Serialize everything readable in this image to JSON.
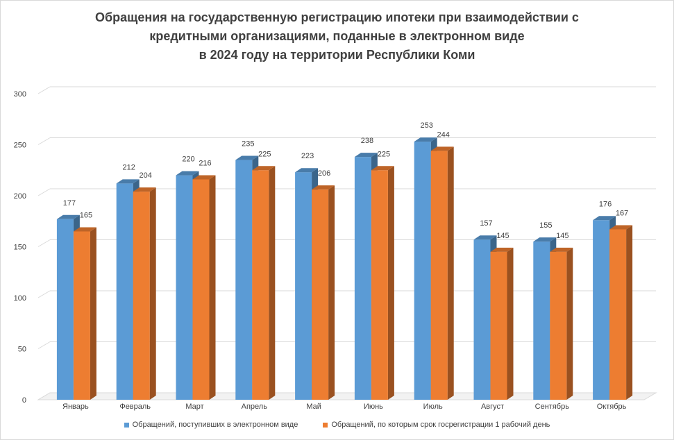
{
  "chart_data": {
    "type": "bar",
    "title_lines": [
      "Обращения на государственную  регистрацию ипотеки при взаимодействии  с",
      "кредитными организациями,  поданные  в электронном  виде",
      "в 2024 году на территории Республики Коми"
    ],
    "categories": [
      "Январь",
      "Февраль",
      "Март",
      "Апрель",
      "Май",
      "Июнь",
      "Июль",
      "Август",
      "Сентябрь",
      "Октябрь"
    ],
    "series": [
      {
        "name": "Обращений, поступивших в электронном виде",
        "color": "#5b9bd5",
        "values": [
          177,
          212,
          220,
          235,
          223,
          238,
          253,
          157,
          155,
          176
        ]
      },
      {
        "name": "Обращений, по которым срок госрегистрации 1 рабочий день",
        "color": "#ed7d31",
        "values": [
          165,
          204,
          216,
          225,
          206,
          225,
          244,
          145,
          145,
          167
        ]
      }
    ],
    "ylim": [
      0,
      300
    ],
    "yticks": [
      0,
      50,
      100,
      150,
      200,
      250,
      300
    ],
    "grid": true,
    "legend_position": "bottom",
    "style": "3d-clustered-column",
    "data_labels": true
  }
}
